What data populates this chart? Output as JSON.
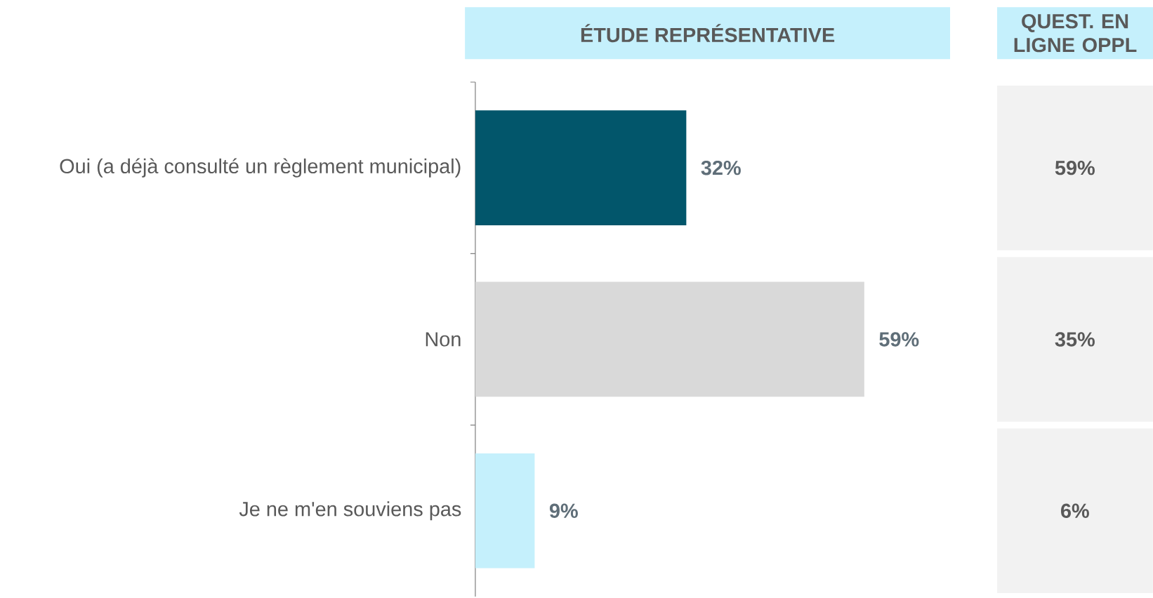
{
  "chart_data": [
    {
      "type": "bar",
      "orientation": "horizontal",
      "title": "ÉTUDE REPRÉSENTATIVE",
      "categories": [
        "Oui (a déjà consulté un règlement municipal)",
        "Non",
        "Je ne m'en souviens pas"
      ],
      "values": [
        32,
        59,
        9
      ],
      "colors": [
        "#02566b",
        "#d9d9d9",
        "#c5f0fc"
      ],
      "value_labels": [
        "32%",
        "59%",
        "9%"
      ]
    },
    {
      "type": "other",
      "title": "QUEST. EN LIGNE OPPL",
      "values": [
        59,
        35,
        6
      ],
      "value_labels": [
        "59%",
        "35%",
        "6%"
      ]
    }
  ]
}
